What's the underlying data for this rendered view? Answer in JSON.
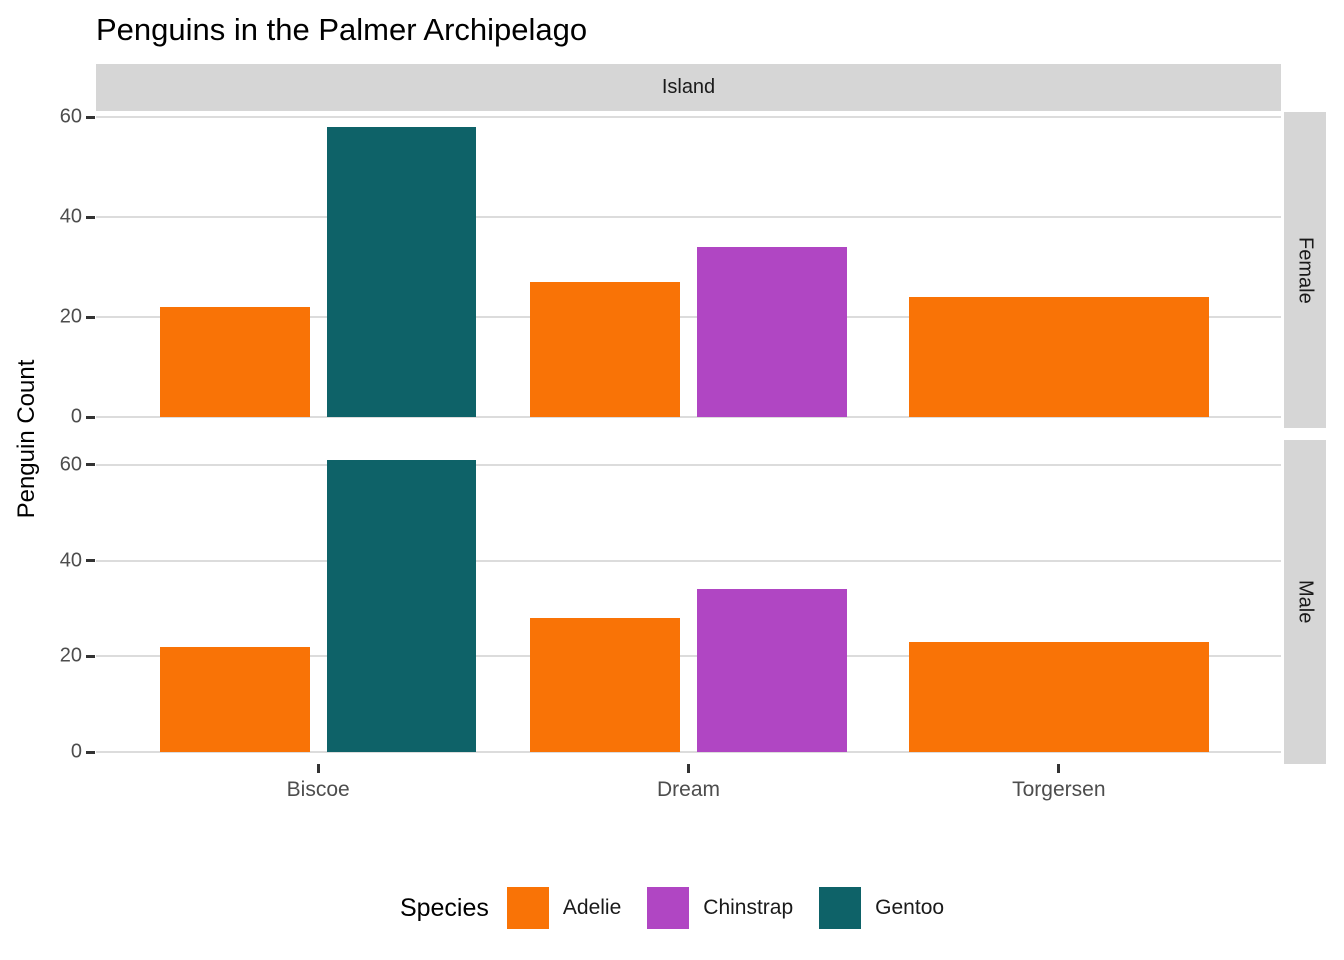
{
  "chart_data": {
    "type": "bar",
    "title": "Penguins in the Palmer Archipelago",
    "facet_column_label": "Island",
    "facet_rows": [
      "Female",
      "Male"
    ],
    "x_categories": [
      "Biscoe",
      "Dream",
      "Torgersen"
    ],
    "ylabel": "Penguin Count",
    "yticks": [
      0,
      20,
      40,
      60
    ],
    "grid": "horizontal major gridlines only",
    "legend_position": "bottom",
    "legend": {
      "title": "Species",
      "entries": [
        {
          "label": "Adelie",
          "color": "#F97306"
        },
        {
          "label": "Chinstrap",
          "color": "#B046C3"
        },
        {
          "label": "Gentoo",
          "color": "#0E6268"
        }
      ]
    },
    "facets": [
      {
        "label": "Female",
        "ylim": [
          -2.2,
          61.0
        ],
        "bars": [
          {
            "island": "Biscoe",
            "species": "Adelie",
            "value": 22
          },
          {
            "island": "Biscoe",
            "species": "Gentoo",
            "value": 58
          },
          {
            "island": "Dream",
            "species": "Adelie",
            "value": 27
          },
          {
            "island": "Dream",
            "species": "Chinstrap",
            "value": 34
          },
          {
            "island": "Torgersen",
            "species": "Adelie",
            "value": 24
          }
        ]
      },
      {
        "label": "Male",
        "ylim": [
          -2.5,
          65.2
        ],
        "bars": [
          {
            "island": "Biscoe",
            "species": "Adelie",
            "value": 22
          },
          {
            "island": "Biscoe",
            "species": "Gentoo",
            "value": 61
          },
          {
            "island": "Dream",
            "species": "Adelie",
            "value": 28
          },
          {
            "island": "Dream",
            "species": "Chinstrap",
            "value": 34
          },
          {
            "island": "Torgersen",
            "species": "Adelie",
            "value": 23
          }
        ]
      }
    ],
    "theme": {
      "strip_fill": "#D6D6D6",
      "strip_text_color": "#1A1A1A",
      "gridline_color": "#DCDCDC",
      "axis_text_color": "#4D4D4D",
      "tick_color": "#333333",
      "background": "#FFFFFF"
    }
  }
}
